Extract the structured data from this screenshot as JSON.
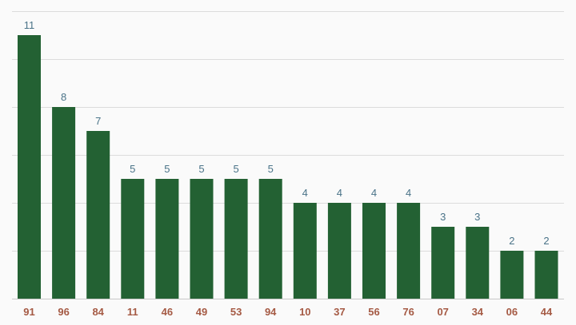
{
  "chart_data": {
    "type": "bar",
    "title": "",
    "xlabel": "",
    "ylabel": "",
    "categories": [
      "91",
      "96",
      "84",
      "11",
      "46",
      "49",
      "53",
      "94",
      "10",
      "37",
      "56",
      "76",
      "07",
      "34",
      "06",
      "44"
    ],
    "values": [
      11,
      8,
      7,
      5,
      5,
      5,
      5,
      5,
      4,
      4,
      4,
      4,
      3,
      3,
      2,
      2
    ],
    "ylim": [
      0,
      12
    ],
    "y_gridlines": [
      0,
      2,
      4,
      6,
      8,
      10,
      12
    ],
    "grid": true,
    "legend": "none",
    "data_labels": true,
    "colors": {
      "bar": "#236133",
      "value_label": "#4a7388",
      "tick_label": "#a55a44",
      "grid": "#dcdcdc",
      "background": "#fafafa"
    }
  }
}
